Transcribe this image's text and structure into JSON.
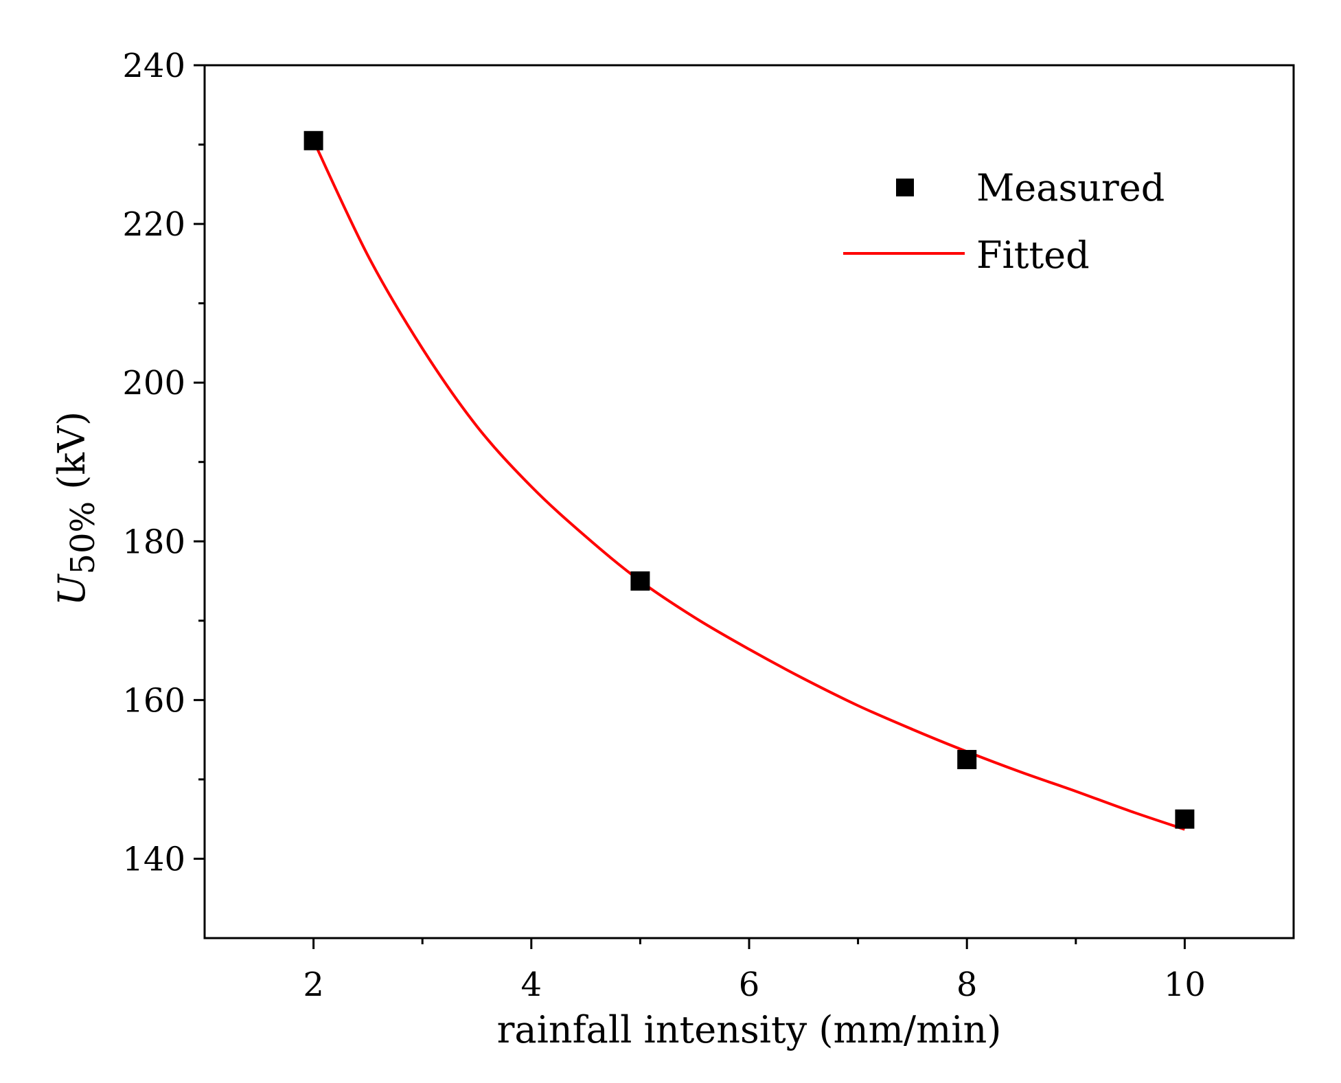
{
  "chart_data": {
    "type": "scatter",
    "xlabel": "rainfall intensity (mm/min)",
    "ylabel": {
      "symbol": "U",
      "subscript": "50%",
      "unit": " (kV)"
    },
    "xlim": [
      1,
      11
    ],
    "ylim": [
      130,
      240
    ],
    "x_ticks": [
      2,
      4,
      6,
      8,
      10
    ],
    "x_tick_labels": [
      "2",
      "4",
      "6",
      "8",
      "10"
    ],
    "x_minor_ticks": [
      3,
      5,
      7,
      9
    ],
    "y_ticks": [
      140,
      160,
      180,
      200,
      220,
      240
    ],
    "y_tick_labels": [
      "140",
      "160",
      "180",
      "200",
      "220",
      "240"
    ],
    "y_minor_ticks": [
      150,
      170,
      190,
      210,
      230
    ],
    "grid": false,
    "legend_position": "top-right",
    "series": [
      {
        "name": "Measured",
        "kind": "scatter",
        "marker": "square",
        "color": "#000000",
        "x": [
          2,
          5,
          8,
          10
        ],
        "y": [
          230.5,
          175,
          152.5,
          145
        ]
      },
      {
        "name": "Fitted",
        "kind": "line",
        "color": "#ff0000",
        "x": [
          2,
          2.5,
          3,
          3.5,
          4,
          4.5,
          5,
          5.5,
          6,
          6.5,
          7,
          7.5,
          8,
          8.5,
          9,
          9.5,
          10
        ],
        "y": [
          230.5,
          216.0,
          204.3,
          194.5,
          186.9,
          180.6,
          175.0,
          170.4,
          166.4,
          162.7,
          159.3,
          156.3,
          153.5,
          150.9,
          148.5,
          146.0,
          143.7
        ]
      }
    ]
  }
}
